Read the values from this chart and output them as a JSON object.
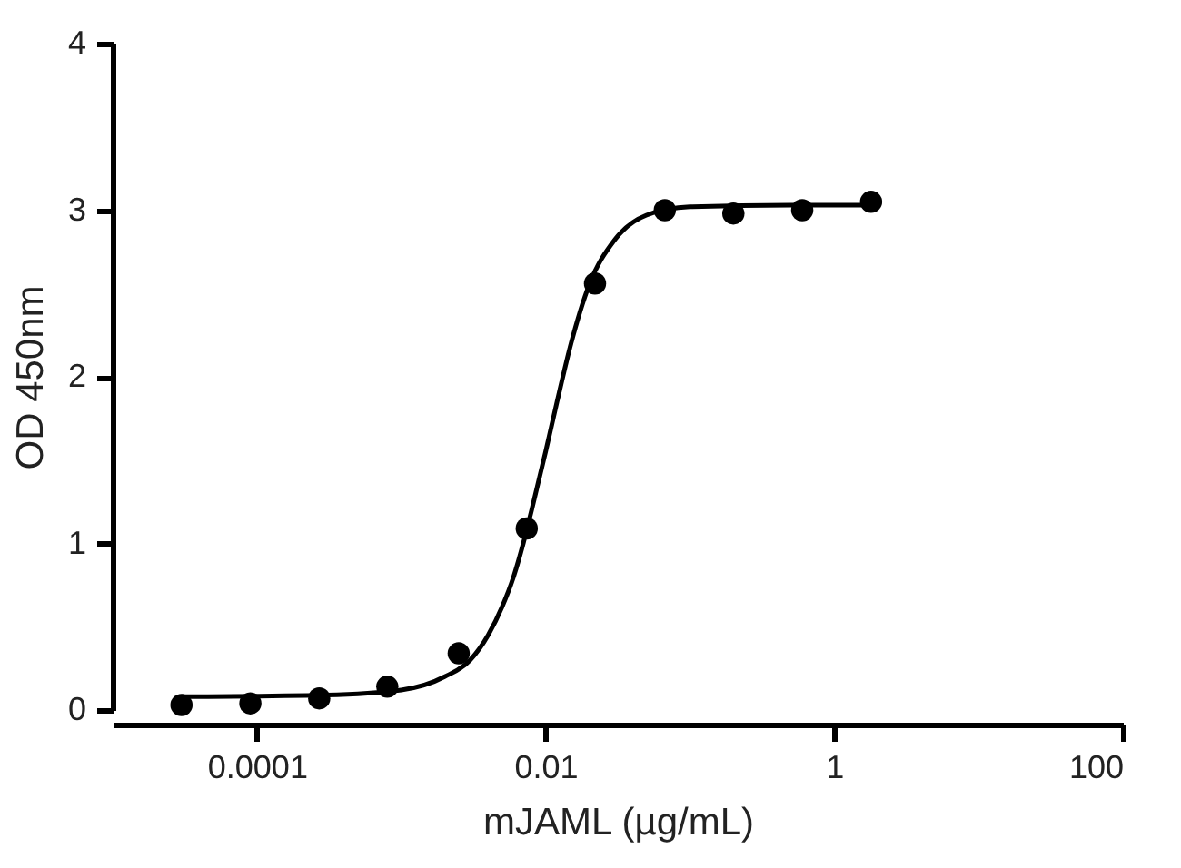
{
  "chart_data": {
    "type": "scatter",
    "xlabel": "mJAML (µg/mL)",
    "ylabel": "OD 450nm",
    "log": "x",
    "xlim": [
      1e-05,
      100
    ],
    "xticks": [
      0.0001,
      0.01,
      1,
      100
    ],
    "ylim": [
      0,
      4
    ],
    "yticks": [
      0,
      1,
      2,
      3,
      4
    ],
    "marker": "circle",
    "series": [
      {
        "type": "line",
        "color": "#000000",
        "line_style": "solid",
        "marker": "none",
        "x": [
          3e-05,
          0.0003,
          0.001,
          0.002,
          0.003,
          0.004,
          0.005,
          0.006,
          0.007,
          0.008,
          0.01,
          0.012,
          0.015,
          0.02,
          0.03,
          0.05,
          0.1,
          0.5,
          1.8
        ],
        "values": [
          0.08,
          0.09,
          0.12,
          0.2,
          0.3,
          0.45,
          0.62,
          0.8,
          1.0,
          1.2,
          1.55,
          1.85,
          2.2,
          2.55,
          2.82,
          2.97,
          3.02,
          3.03,
          3.03
        ]
      },
      {
        "color": "#000000",
        "x": [
          3e-05,
          9e-05,
          0.00027,
          0.0008,
          0.0025,
          0.0074,
          0.022,
          0.067,
          0.2,
          0.6,
          1.8
        ],
        "values": [
          0.03,
          0.04,
          0.07,
          0.14,
          0.34,
          1.09,
          2.56,
          3.0,
          2.98,
          3.0,
          3.05
        ]
      }
    ]
  }
}
